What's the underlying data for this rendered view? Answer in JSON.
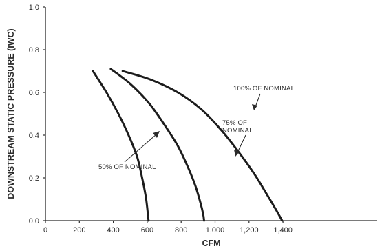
{
  "chart_data": {
    "type": "line",
    "xlabel": "CFM",
    "ylabel": "DOWNSTREAM STATIC PRESSURE (IWC)",
    "xlim": [
      0,
      1500
    ],
    "ylim": [
      0,
      1.0
    ],
    "x_ticks": [
      "0",
      "200",
      "400",
      "600",
      "800",
      "1,000",
      "1,200",
      "1,400"
    ],
    "x_tick_values": [
      0,
      200,
      400,
      600,
      800,
      1000,
      1200,
      1400
    ],
    "y_ticks": [
      "0.0",
      "0.2",
      "0.4",
      "0.6",
      "0.8",
      "1.0"
    ],
    "y_tick_values": [
      0.0,
      0.2,
      0.4,
      0.6,
      0.8,
      1.0
    ],
    "grid": false,
    "series": [
      {
        "name": "50% OF NOMINAL",
        "x": [
          280,
          360,
          430,
          490,
          540,
          570,
          590,
          600,
          605,
          608
        ],
        "y": [
          0.7,
          0.6,
          0.5,
          0.4,
          0.3,
          0.2,
          0.12,
          0.06,
          0.02,
          0.0
        ]
      },
      {
        "name": "75% OF NOMINAL",
        "x": [
          385,
          500,
          610,
          700,
          780,
          840,
          885,
          915,
          930,
          935
        ],
        "y": [
          0.71,
          0.64,
          0.55,
          0.45,
          0.35,
          0.25,
          0.16,
          0.08,
          0.03,
          0.0
        ]
      },
      {
        "name": "100% OF NOMINAL",
        "x": [
          455,
          620,
          780,
          920,
          1040,
          1140,
          1230,
          1300,
          1360,
          1395
        ],
        "y": [
          0.7,
          0.66,
          0.6,
          0.52,
          0.42,
          0.32,
          0.22,
          0.13,
          0.05,
          0.0
        ]
      }
    ],
    "annotations": [
      {
        "text": "100% OF NOMINAL",
        "series": 2
      },
      {
        "text": "75% OF",
        "series": 1
      },
      {
        "text": "NOMINAL",
        "series": 1
      },
      {
        "text": "50% OF NOMINAL",
        "series": 0
      }
    ]
  }
}
